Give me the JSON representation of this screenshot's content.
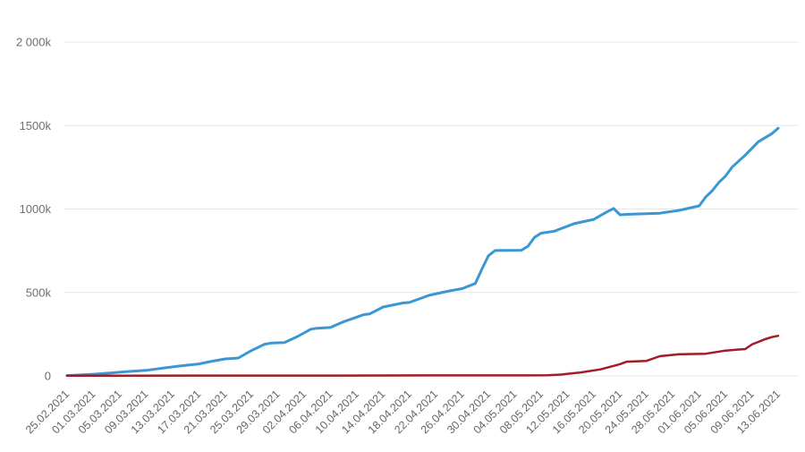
{
  "chart_data": {
    "type": "line",
    "title": "",
    "xlabel": "",
    "ylabel": "",
    "legend": false,
    "grid": true,
    "background_color": "#ffffff",
    "grid_color": "#e6e6e6",
    "axis_label_color": "#6f6f6f",
    "x_tick_labels": [
      "25.02.2021",
      "01.03.2021",
      "05.03.2021",
      "09.03.2021",
      "13.03.2021",
      "17.03.2021",
      "21.03.2021",
      "25.03.2021",
      "29.03.2021",
      "02.04.2021",
      "06.04.2021",
      "10.04.2021",
      "14.04.2021",
      "18.04.2021",
      "22.04.2021",
      "26.04.2021",
      "30.04.2021",
      "04.05.2021",
      "08.05.2021",
      "12.05.2021",
      "16.05.2021",
      "20.05.2021",
      "24.05.2021",
      "28.05.2021",
      "01.06.2021",
      "05.06.2021",
      "09.06.2021",
      "13.06.2021"
    ],
    "x_tick_interval_days": 4,
    "x_range_days": [
      0,
      108
    ],
    "y_axis": {
      "tick_labels": [
        "0",
        "500k",
        "1000k",
        "1500k",
        "2 000k"
      ],
      "tick_values_k": [
        0,
        500,
        1000,
        1500,
        2000
      ],
      "min_k": 0,
      "max_k": 2000
    },
    "series": [
      {
        "name": "blue-line",
        "color": "#3a97d3",
        "stroke_width": 3,
        "points_day_valuek": [
          [
            0,
            2
          ],
          [
            2,
            6
          ],
          [
            4,
            10
          ],
          [
            6,
            16
          ],
          [
            9,
            25
          ],
          [
            12,
            33
          ],
          [
            14,
            44
          ],
          [
            17,
            59
          ],
          [
            20,
            72
          ],
          [
            22,
            88
          ],
          [
            24,
            102
          ],
          [
            26,
            107
          ],
          [
            28,
            152
          ],
          [
            30,
            190
          ],
          [
            31,
            197
          ],
          [
            33,
            200
          ],
          [
            35,
            236
          ],
          [
            37,
            280
          ],
          [
            38,
            286
          ],
          [
            40,
            290
          ],
          [
            42,
            325
          ],
          [
            45,
            366
          ],
          [
            46,
            372
          ],
          [
            48,
            413
          ],
          [
            51,
            437
          ],
          [
            52,
            440
          ],
          [
            55,
            483
          ],
          [
            58,
            509
          ],
          [
            60,
            523
          ],
          [
            62,
            554
          ],
          [
            63,
            640
          ],
          [
            64,
            720
          ],
          [
            65,
            751
          ],
          [
            69,
            753
          ],
          [
            70,
            777
          ],
          [
            71,
            830
          ],
          [
            72,
            855
          ],
          [
            74,
            867
          ],
          [
            77,
            912
          ],
          [
            80,
            938
          ],
          [
            82,
            983
          ],
          [
            83,
            1003
          ],
          [
            84,
            965
          ],
          [
            85,
            968
          ],
          [
            90,
            975
          ],
          [
            93,
            992
          ],
          [
            96,
            1019
          ],
          [
            97,
            1072
          ],
          [
            98,
            1110
          ],
          [
            99,
            1160
          ],
          [
            100,
            1197
          ],
          [
            101,
            1251
          ],
          [
            103,
            1323
          ],
          [
            105,
            1403
          ],
          [
            107,
            1450
          ],
          [
            108,
            1484
          ]
        ]
      },
      {
        "name": "dark-red-line",
        "color": "#a11c26",
        "stroke_width": 2.5,
        "points_day_valuek": [
          [
            0,
            1
          ],
          [
            20,
            2
          ],
          [
            40,
            2
          ],
          [
            55,
            3
          ],
          [
            65,
            3
          ],
          [
            70,
            3
          ],
          [
            73,
            4
          ],
          [
            75,
            8
          ],
          [
            78,
            21
          ],
          [
            81,
            39
          ],
          [
            83,
            60
          ],
          [
            84,
            71
          ],
          [
            85,
            85
          ],
          [
            88,
            90
          ],
          [
            90,
            118
          ],
          [
            93,
            130
          ],
          [
            97,
            133
          ],
          [
            100,
            152
          ],
          [
            102,
            158
          ],
          [
            103,
            161
          ],
          [
            104,
            188
          ],
          [
            106,
            220
          ],
          [
            107,
            232
          ],
          [
            108,
            240
          ]
        ]
      }
    ]
  }
}
